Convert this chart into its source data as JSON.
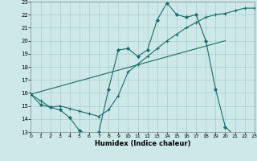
{
  "xlabel": "Humidex (Indice chaleur)",
  "bg_color": "#cce8e8",
  "line_color": "#1a6b6b",
  "grid_color": "#aacccc",
  "xlim": [
    0,
    23
  ],
  "ylim": [
    13,
    23
  ],
  "yticks": [
    13,
    14,
    15,
    16,
    17,
    18,
    19,
    20,
    21,
    22,
    23
  ],
  "xticks": [
    0,
    1,
    2,
    3,
    4,
    5,
    6,
    7,
    8,
    9,
    10,
    11,
    12,
    13,
    14,
    15,
    16,
    17,
    18,
    19,
    20,
    21,
    22,
    23
  ],
  "line1_x": [
    0,
    1,
    2,
    3,
    4,
    5,
    6,
    7,
    8,
    9,
    10,
    11,
    12,
    13,
    14,
    15,
    16,
    17,
    18,
    19,
    20,
    21,
    22
  ],
  "line1_y": [
    15.9,
    15.1,
    14.9,
    14.7,
    14.1,
    13.1,
    12.8,
    13.0,
    16.3,
    19.3,
    19.4,
    18.8,
    19.3,
    21.6,
    22.9,
    22.0,
    21.8,
    22.0,
    20.0,
    16.3,
    13.4,
    12.7,
    null
  ],
  "line2_x": [
    0,
    1,
    2,
    3,
    4,
    5,
    6,
    7,
    8,
    9,
    10,
    11,
    12,
    13,
    14,
    15,
    16,
    17,
    18,
    19,
    20,
    21,
    22,
    23
  ],
  "line2_y": [
    15.9,
    15.4,
    14.9,
    15.0,
    14.8,
    14.6,
    14.4,
    14.2,
    14.7,
    15.8,
    17.6,
    18.2,
    18.8,
    19.4,
    20.0,
    20.5,
    21.0,
    21.4,
    21.8,
    22.0,
    22.1,
    22.3,
    22.5,
    22.5
  ],
  "line3_x": [
    0,
    20
  ],
  "line3_y": [
    15.9,
    20.0
  ]
}
